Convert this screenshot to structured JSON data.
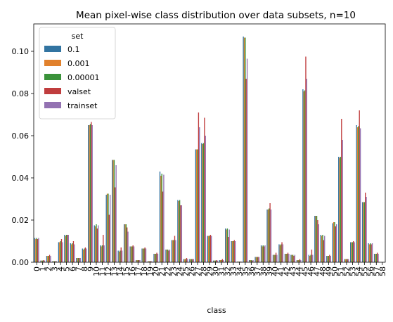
{
  "chart_data": {
    "type": "bar",
    "title": "Mean pixel-wise class distribution over data subsets, n=10",
    "xlabel": "class",
    "ylabel": "",
    "ylim": [
      0,
      0.113
    ],
    "yticks": [
      "0.00",
      "0.02",
      "0.04",
      "0.06",
      "0.08",
      "0.10"
    ],
    "legend": {
      "title": "set",
      "placement": "top-left"
    },
    "grid": false,
    "categories": [
      "0",
      "1",
      "2",
      "3",
      "4",
      "5",
      "6",
      "7",
      "8",
      "9",
      "10",
      "11",
      "12",
      "13",
      "14",
      "15",
      "16",
      "17",
      "18",
      "19",
      "20",
      "21",
      "22",
      "23",
      "24",
      "25",
      "26",
      "27",
      "28",
      "29",
      "30",
      "31",
      "32",
      "33",
      "34",
      "35",
      "36",
      "37",
      "38",
      "39",
      "40",
      "41",
      "42",
      "43",
      "44",
      "45",
      "46",
      "47",
      "48",
      "49",
      "50",
      "51",
      "52",
      "53",
      "54",
      "55",
      "56",
      "57",
      "58"
    ],
    "series": [
      {
        "name": "0.1",
        "color": "#3274a1",
        "values": [
          0.0115,
          0.0008,
          0.003,
          0.0005,
          0.0095,
          0.013,
          0.009,
          0.002,
          0.0065,
          0.065,
          0.0175,
          0.008,
          0.032,
          0.0485,
          0.0055,
          0.018,
          0.0075,
          0.001,
          0.0065,
          0.0005,
          0.004,
          0.043,
          0.006,
          0.0105,
          0.0295,
          0.0015,
          0.0015,
          0.0535,
          0.0565,
          0.0125,
          0.0008,
          0.001,
          0.016,
          0.01,
          0.0003,
          0.107,
          0.001,
          0.0025,
          0.008,
          0.025,
          0.0035,
          0.0085,
          0.004,
          0.0035,
          0.001,
          0.082,
          0.0035,
          0.022,
          0.013,
          0.003,
          0.0185,
          0.05,
          0.0015,
          0.0095,
          0.065,
          0.0285,
          0.009,
          0.004,
          0.0
        ]
      },
      {
        "name": "0.001",
        "color": "#e1812c",
        "values": [
          0.011,
          0.0008,
          0.003,
          0.0005,
          0.0095,
          0.0125,
          0.0085,
          0.002,
          0.006,
          0.065,
          0.017,
          0.0075,
          0.0325,
          0.0485,
          0.005,
          0.018,
          0.0075,
          0.001,
          0.0065,
          0.0005,
          0.004,
          0.041,
          0.006,
          0.0105,
          0.029,
          0.0015,
          0.0015,
          0.0535,
          0.056,
          0.0125,
          0.0008,
          0.001,
          0.0155,
          0.01,
          0.0003,
          0.1065,
          0.001,
          0.0025,
          0.0075,
          0.025,
          0.0035,
          0.008,
          0.004,
          0.0035,
          0.001,
          0.081,
          0.003,
          0.022,
          0.0125,
          0.003,
          0.019,
          0.0495,
          0.0015,
          0.0095,
          0.064,
          0.0285,
          0.0085,
          0.004,
          0.0
        ]
      },
      {
        "name": "0.00001",
        "color": "#3a923a",
        "values": [
          0.0115,
          0.0008,
          0.003,
          0.0005,
          0.01,
          0.013,
          0.009,
          0.002,
          0.0065,
          0.0655,
          0.018,
          0.008,
          0.0325,
          0.0485,
          0.0055,
          0.018,
          0.0075,
          0.001,
          0.0065,
          0.0005,
          0.004,
          0.042,
          0.006,
          0.0105,
          0.0295,
          0.0015,
          0.0015,
          0.0535,
          0.0565,
          0.0125,
          0.0008,
          0.001,
          0.016,
          0.01,
          0.0003,
          0.1065,
          0.001,
          0.0025,
          0.008,
          0.0255,
          0.0035,
          0.0085,
          0.004,
          0.0035,
          0.001,
          0.0815,
          0.0035,
          0.022,
          0.013,
          0.003,
          0.019,
          0.05,
          0.0015,
          0.0095,
          0.0645,
          0.0285,
          0.009,
          0.004,
          0.0
        ]
      },
      {
        "name": "valset",
        "color": "#c03d3e",
        "values": [
          0.011,
          0.001,
          0.0035,
          0.0005,
          0.011,
          0.013,
          0.01,
          0.002,
          0.007,
          0.0665,
          0.016,
          0.013,
          0.0225,
          0.0355,
          0.007,
          0.0165,
          0.008,
          0.001,
          0.007,
          0.0005,
          0.0045,
          0.0335,
          0.0055,
          0.0125,
          0.027,
          0.002,
          0.0015,
          0.071,
          0.0685,
          0.013,
          0.001,
          0.0015,
          0.012,
          0.0105,
          0.0003,
          0.087,
          0.0008,
          0.0025,
          0.0075,
          0.028,
          0.0045,
          0.0095,
          0.0045,
          0.003,
          0.0015,
          0.0975,
          0.006,
          0.02,
          0.0105,
          0.0035,
          0.017,
          0.068,
          0.0015,
          0.01,
          0.072,
          0.033,
          0.0085,
          0.0045,
          0.0
        ]
      },
      {
        "name": "trainset",
        "color": "#9372b2",
        "values": [
          0.0115,
          0.0008,
          0.003,
          0.0005,
          0.0095,
          0.013,
          0.0085,
          0.002,
          0.0065,
          0.065,
          0.0175,
          0.008,
          0.032,
          0.046,
          0.0055,
          0.0145,
          0.0075,
          0.001,
          0.0065,
          0.0005,
          0.004,
          0.0415,
          0.006,
          0.0105,
          0.027,
          0.0015,
          0.0015,
          0.064,
          0.06,
          0.0125,
          0.0008,
          0.001,
          0.0155,
          0.01,
          0.0003,
          0.0965,
          0.001,
          0.0025,
          0.008,
          0.025,
          0.0035,
          0.0085,
          0.004,
          0.0035,
          0.001,
          0.087,
          0.0035,
          0.018,
          0.0125,
          0.003,
          0.018,
          0.058,
          0.0015,
          0.0095,
          0.0635,
          0.031,
          0.009,
          0.004,
          0.0
        ]
      }
    ]
  }
}
